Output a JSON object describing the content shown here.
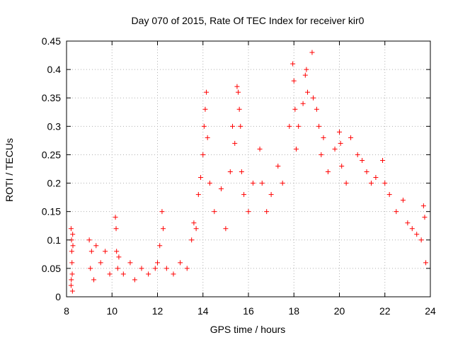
{
  "chart_data": {
    "type": "scatter",
    "title": "Day 070 of 2015, Rate Of TEC Index for receiver kir0",
    "xlabel": "GPS time / hours",
    "ylabel": "ROTI / TECUs",
    "xlim": [
      8,
      24
    ],
    "ylim": [
      0,
      0.45
    ],
    "x_ticks": [
      "8",
      "10",
      "12",
      "14",
      "16",
      "18",
      "20",
      "22",
      "24"
    ],
    "y_ticks": [
      "0",
      "0.05",
      "0.1",
      "0.15",
      "0.2",
      "0.25",
      "0.3",
      "0.35",
      "0.4",
      "0.45"
    ],
    "grid": true,
    "marker": "plus",
    "marker_color": "#ff0000",
    "legend": "none",
    "series": [
      {
        "x": [
          8.2,
          8.22,
          8.25,
          8.2,
          8.23,
          8.27,
          8.21,
          8.24,
          8.26,
          8.28,
          9.0,
          9.05,
          9.1,
          9.2,
          9.3,
          9.5,
          9.7,
          9.9,
          10.15,
          10.18,
          10.2,
          10.25,
          10.3,
          10.5,
          10.8,
          11.0,
          11.3,
          11.6,
          11.9,
          12.0,
          12.1,
          12.2,
          12.25,
          12.4,
          12.7,
          13.0,
          13.3,
          13.5,
          13.6,
          13.7,
          13.8,
          13.9,
          14.0,
          14.05,
          14.1,
          14.15,
          14.2,
          14.3,
          14.5,
          14.8,
          15.0,
          15.2,
          15.3,
          15.4,
          15.5,
          15.55,
          15.6,
          15.65,
          15.7,
          15.8,
          16.0,
          16.2,
          16.5,
          16.6,
          16.8,
          17.0,
          17.3,
          17.5,
          17.8,
          17.95,
          18.0,
          18.05,
          18.1,
          18.2,
          18.4,
          18.5,
          18.55,
          18.6,
          18.8,
          18.85,
          19.0,
          19.1,
          19.2,
          19.3,
          19.5,
          19.8,
          20.0,
          20.05,
          20.1,
          20.3,
          20.5,
          20.8,
          21.0,
          21.2,
          21.4,
          21.6,
          21.9,
          22.0,
          22.2,
          22.5,
          22.8,
          23.0,
          23.2,
          23.4,
          23.6,
          23.7,
          23.75,
          23.8
        ],
        "y": [
          0.12,
          0.1,
          0.04,
          0.02,
          0.08,
          0.11,
          0.03,
          0.06,
          0.01,
          0.09,
          0.1,
          0.05,
          0.08,
          0.03,
          0.09,
          0.06,
          0.08,
          0.04,
          0.14,
          0.12,
          0.08,
          0.05,
          0.07,
          0.04,
          0.06,
          0.03,
          0.05,
          0.04,
          0.05,
          0.06,
          0.09,
          0.15,
          0.12,
          0.05,
          0.04,
          0.06,
          0.05,
          0.1,
          0.13,
          0.12,
          0.18,
          0.21,
          0.25,
          0.3,
          0.33,
          0.36,
          0.28,
          0.2,
          0.15,
          0.19,
          0.12,
          0.22,
          0.3,
          0.27,
          0.37,
          0.36,
          0.33,
          0.3,
          0.22,
          0.18,
          0.15,
          0.2,
          0.26,
          0.2,
          0.15,
          0.18,
          0.23,
          0.2,
          0.3,
          0.41,
          0.38,
          0.33,
          0.26,
          0.3,
          0.34,
          0.39,
          0.4,
          0.36,
          0.43,
          0.35,
          0.33,
          0.3,
          0.25,
          0.28,
          0.22,
          0.26,
          0.29,
          0.27,
          0.23,
          0.2,
          0.28,
          0.25,
          0.24,
          0.22,
          0.2,
          0.21,
          0.24,
          0.2,
          0.18,
          0.15,
          0.17,
          0.13,
          0.12,
          0.11,
          0.1,
          0.16,
          0.14,
          0.06
        ]
      }
    ]
  }
}
